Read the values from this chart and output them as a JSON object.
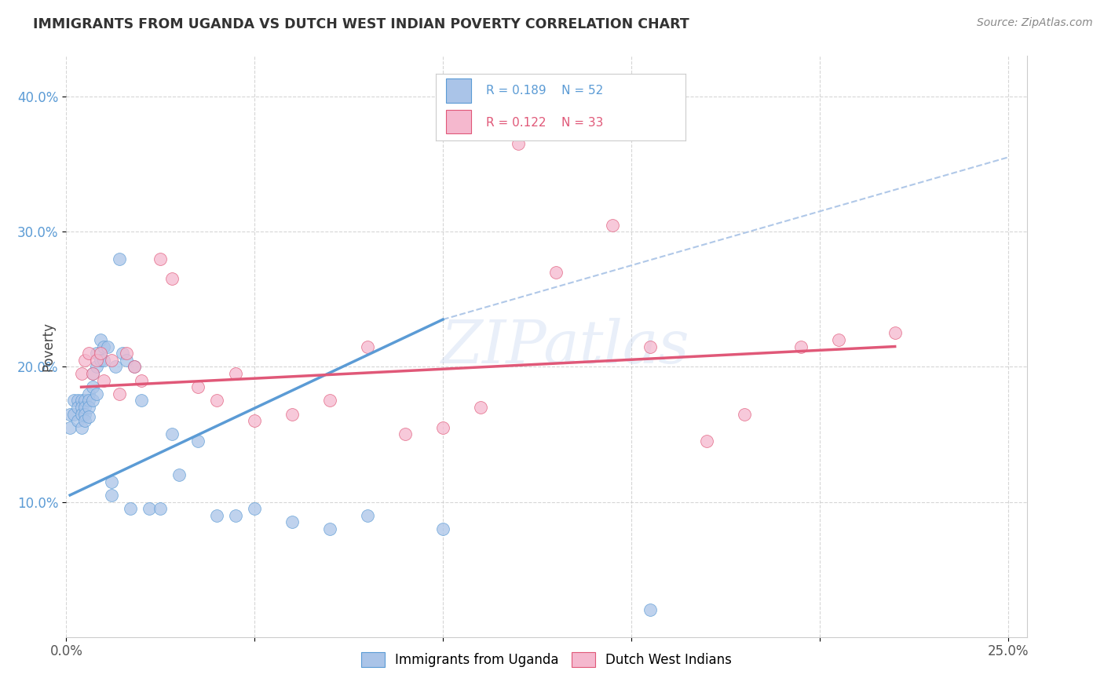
{
  "title": "IMMIGRANTS FROM UGANDA VS DUTCH WEST INDIAN POVERTY CORRELATION CHART",
  "source": "Source: ZipAtlas.com",
  "ylabel": "Poverty",
  "xlim": [
    0.0,
    0.255
  ],
  "ylim": [
    0.0,
    0.43
  ],
  "xticks": [
    0.0,
    0.05,
    0.1,
    0.15,
    0.2,
    0.25
  ],
  "xticklabels": [
    "0.0%",
    "",
    "",
    "",
    "",
    "25.0%"
  ],
  "yticks": [
    0.1,
    0.2,
    0.3,
    0.4
  ],
  "yticklabels": [
    "10.0%",
    "20.0%",
    "30.0%",
    "40.0%"
  ],
  "legend1_label": "Immigrants from Uganda",
  "legend2_label": "Dutch West Indians",
  "r1": "0.189",
  "n1": "52",
  "r2": "0.122",
  "n2": "33",
  "color1": "#aac4e8",
  "color2": "#f5b8ce",
  "line1_color": "#5b9bd5",
  "line2_color": "#e05878",
  "watermark": "ZIPatlas",
  "uganda_x": [
    0.001,
    0.001,
    0.002,
    0.002,
    0.003,
    0.003,
    0.003,
    0.004,
    0.004,
    0.004,
    0.004,
    0.005,
    0.005,
    0.005,
    0.005,
    0.006,
    0.006,
    0.006,
    0.006,
    0.007,
    0.007,
    0.007,
    0.008,
    0.008,
    0.008,
    0.009,
    0.009,
    0.01,
    0.01,
    0.011,
    0.012,
    0.012,
    0.013,
    0.014,
    0.015,
    0.016,
    0.017,
    0.018,
    0.02,
    0.022,
    0.025,
    0.028,
    0.03,
    0.035,
    0.04,
    0.045,
    0.05,
    0.06,
    0.07,
    0.08,
    0.1,
    0.155
  ],
  "uganda_y": [
    0.165,
    0.155,
    0.175,
    0.165,
    0.175,
    0.17,
    0.16,
    0.175,
    0.17,
    0.165,
    0.155,
    0.175,
    0.17,
    0.165,
    0.16,
    0.18,
    0.175,
    0.17,
    0.163,
    0.195,
    0.185,
    0.175,
    0.21,
    0.2,
    0.18,
    0.22,
    0.205,
    0.215,
    0.205,
    0.215,
    0.115,
    0.105,
    0.2,
    0.28,
    0.21,
    0.205,
    0.095,
    0.2,
    0.175,
    0.095,
    0.095,
    0.15,
    0.12,
    0.145,
    0.09,
    0.09,
    0.095,
    0.085,
    0.08,
    0.09,
    0.08,
    0.02
  ],
  "dutch_x": [
    0.004,
    0.005,
    0.006,
    0.007,
    0.008,
    0.009,
    0.01,
    0.012,
    0.014,
    0.016,
    0.018,
    0.02,
    0.025,
    0.028,
    0.035,
    0.04,
    0.045,
    0.05,
    0.06,
    0.07,
    0.08,
    0.09,
    0.1,
    0.11,
    0.12,
    0.13,
    0.145,
    0.155,
    0.17,
    0.18,
    0.195,
    0.205,
    0.22
  ],
  "dutch_y": [
    0.195,
    0.205,
    0.21,
    0.195,
    0.205,
    0.21,
    0.19,
    0.205,
    0.18,
    0.21,
    0.2,
    0.19,
    0.28,
    0.265,
    0.185,
    0.175,
    0.195,
    0.16,
    0.165,
    0.175,
    0.215,
    0.15,
    0.155,
    0.17,
    0.365,
    0.27,
    0.305,
    0.215,
    0.145,
    0.165,
    0.215,
    0.22,
    0.225
  ],
  "uganda_line_x": [
    0.001,
    0.1
  ],
  "uganda_line_y": [
    0.105,
    0.235
  ],
  "dutch_line_x": [
    0.004,
    0.22
  ],
  "dutch_line_y": [
    0.185,
    0.215
  ],
  "dash_line_x": [
    0.1,
    0.25
  ],
  "dash_line_y": [
    0.235,
    0.355
  ]
}
